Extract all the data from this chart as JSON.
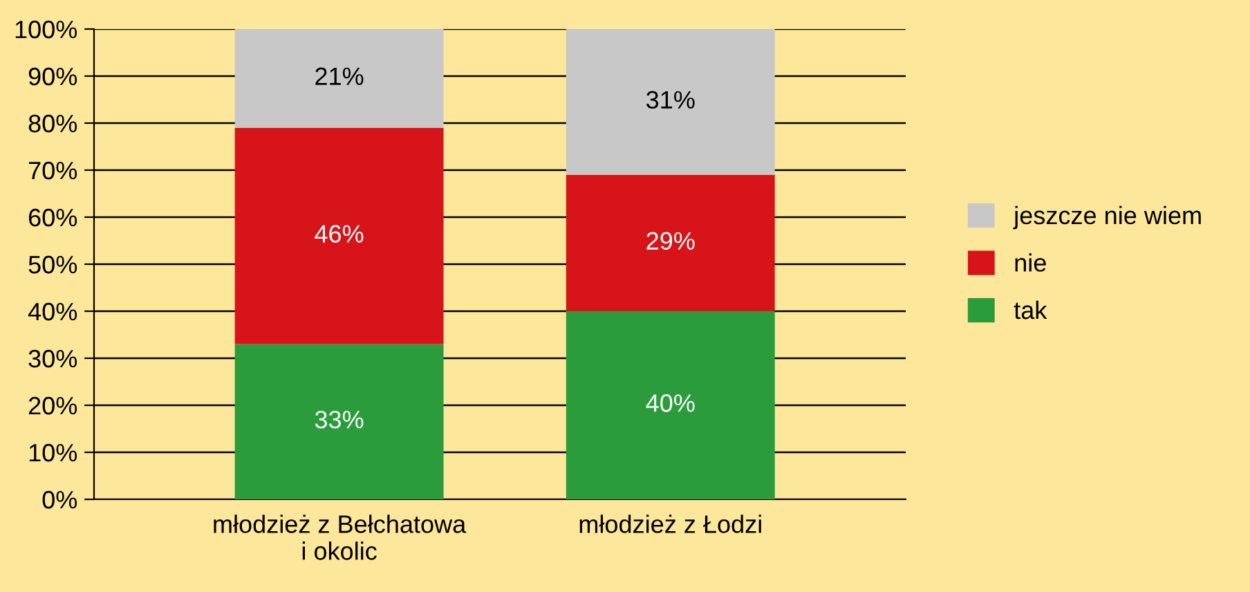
{
  "chart_data": {
    "type": "bar",
    "stacked": true,
    "categories": [
      "młodzież z Bełchatowa\ni okolic",
      "młodzież z Łodzi"
    ],
    "series": [
      {
        "name": "tak",
        "color": "#2b9c3b",
        "values": [
          33,
          40
        ],
        "value_labels": [
          "33%",
          "40%"
        ]
      },
      {
        "name": "nie",
        "color": "#d7141a",
        "values": [
          46,
          29
        ],
        "value_labels": [
          "46%",
          "29%"
        ]
      },
      {
        "name": "jeszcze nie wiem",
        "color": "#c8c8c8",
        "values": [
          21,
          31
        ],
        "value_labels": [
          "21%",
          "31%"
        ]
      }
    ],
    "ylim": [
      0,
      100
    ],
    "yticks": [
      {
        "value": 0,
        "label": "0%"
      },
      {
        "value": 10,
        "label": "10%"
      },
      {
        "value": 20,
        "label": "20%"
      },
      {
        "value": 30,
        "label": "30%"
      },
      {
        "value": 40,
        "label": "40%"
      },
      {
        "value": 50,
        "label": "50%"
      },
      {
        "value": 60,
        "label": "60%"
      },
      {
        "value": 70,
        "label": "70%"
      },
      {
        "value": 80,
        "label": "80%"
      },
      {
        "value": 90,
        "label": "90%"
      },
      {
        "value": 100,
        "label": "100%"
      }
    ],
    "grid": "y",
    "legend": "right"
  }
}
